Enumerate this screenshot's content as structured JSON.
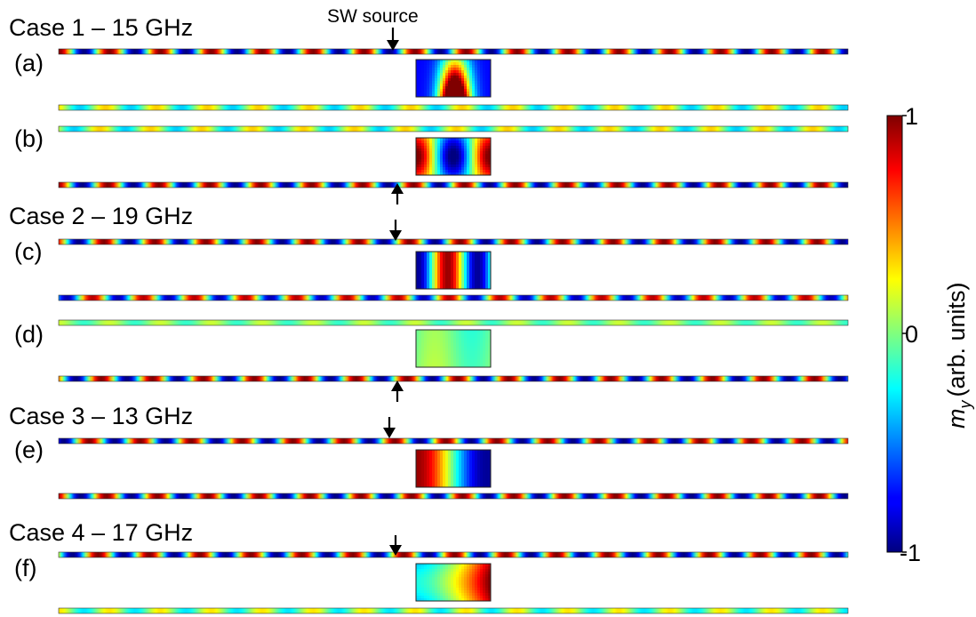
{
  "source_label": "SW source",
  "cases": [
    {
      "title": "Case 1 – 15 GHz",
      "panels": [
        {
          "label": "(a)",
          "top_phase": 0.0,
          "top_amp": 1.0,
          "top_quiet_left": false,
          "bottom_phase": 0.5,
          "bottom_amp": 0.35,
          "resonator_mode": "dome",
          "arrows": [
            "source-top"
          ]
        },
        {
          "label": "(b)",
          "top_phase": 1.2,
          "top_amp": 0.35,
          "top_quiet_left": false,
          "bottom_phase": 0.2,
          "bottom_amp": 1.0,
          "resonator_mode": "twopeak-blue-center",
          "arrows": [
            "source-bottom"
          ]
        }
      ]
    },
    {
      "title": "Case 2 – 19 GHz",
      "panels": [
        {
          "label": "(c)",
          "top_phase": 0.7,
          "top_amp": 1.0,
          "top_quiet_left": false,
          "bottom_phase": 2.1,
          "bottom_amp": 0.9,
          "resonator_mode": "blue-red-blue-red",
          "arrows": [
            "source-top"
          ]
        },
        {
          "label": "(d)",
          "top_phase": 0.0,
          "top_amp": 0.15,
          "top_quiet_left": false,
          "bottom_phase": 1.0,
          "bottom_amp": 1.0,
          "resonator_mode": "weak",
          "arrows": [
            "source-bottom"
          ]
        }
      ]
    },
    {
      "title": "Case 3 – 13 GHz",
      "panels": [
        {
          "label": "(e)",
          "top_phase": 2.5,
          "top_amp": 1.0,
          "top_quiet_left": false,
          "bottom_phase": 0.4,
          "bottom_amp": 1.0,
          "resonator_mode": "red-yellow-blue",
          "arrows": [
            "source-top"
          ]
        }
      ]
    },
    {
      "title": "Case 4 – 17 GHz",
      "panels": [
        {
          "label": "(f)",
          "top_phase": 1.4,
          "top_amp": 1.0,
          "top_quiet_left": false,
          "bottom_phase": 0.0,
          "bottom_amp": 0.3,
          "resonator_mode": "cyan-yellow-red",
          "arrows": [
            "source-top"
          ]
        }
      ]
    }
  ],
  "colorbar": {
    "label_symbol": "m",
    "label_subscript": "y",
    "label_text": "(arb. units)",
    "ticks": [
      "1",
      "0",
      "-1"
    ],
    "colormap": "jet"
  }
}
